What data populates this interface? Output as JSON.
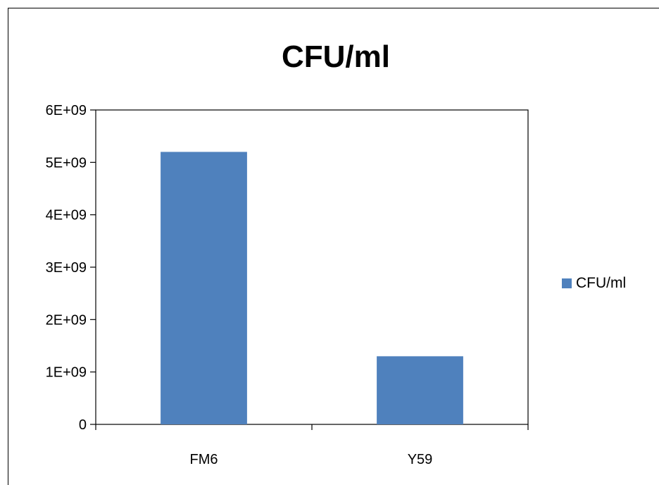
{
  "chart_data": {
    "type": "bar",
    "title": "CFU/ml",
    "xlabel": "",
    "ylabel": "",
    "categories": [
      "FM6",
      "Y59"
    ],
    "series": [
      {
        "name": "CFU/ml",
        "values": [
          5200000000,
          1300000000
        ],
        "color": "#4F81BD"
      }
    ],
    "y_ticks": [
      "0",
      "1E+09",
      "2E+09",
      "3E+09",
      "4E+09",
      "5E+09",
      "6E+09"
    ],
    "ylim": [
      0,
      6000000000
    ],
    "grid": false,
    "legend_position": "right"
  }
}
